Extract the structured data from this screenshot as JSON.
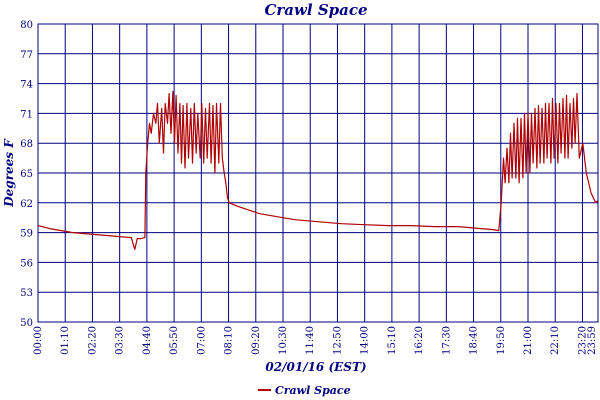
{
  "chart_data": {
    "type": "line",
    "title": "Crawl Space",
    "xlabel": "02/01/16 (EST)",
    "ylabel": "Degrees F",
    "ylim": [
      50,
      80
    ],
    "yticks": [
      "80",
      "77",
      "74",
      "71",
      "68",
      "65",
      "62",
      "59",
      "56",
      "53",
      "50"
    ],
    "xlim": [
      0,
      24
    ],
    "xtick_labels": [
      "00:00",
      "01:10",
      "02:20",
      "03:30",
      "04:40",
      "05:50",
      "07:00",
      "08:10",
      "09:20",
      "10:30",
      "11:40",
      "12:50",
      "14:00",
      "15:10",
      "16:20",
      "17:30",
      "18:40",
      "19:50",
      "21:00",
      "22:10",
      "23:20",
      "23:59"
    ],
    "grid": true,
    "legend_position": "bottom-center",
    "colors": {
      "series": "#b00000",
      "axis_text": "#000080",
      "grid": "#000080"
    },
    "series": [
      {
        "name": "Crawl Space",
        "x_hours": [
          0.0,
          0.5,
          1.0,
          1.5,
          2.0,
          2.5,
          3.0,
          3.5,
          4.0,
          4.15,
          4.25,
          4.4,
          4.58,
          4.62,
          4.7,
          4.78,
          4.85,
          4.95,
          5.05,
          5.12,
          5.2,
          5.3,
          5.38,
          5.45,
          5.55,
          5.62,
          5.7,
          5.78,
          5.85,
          5.92,
          6.0,
          6.08,
          6.15,
          6.22,
          6.3,
          6.38,
          6.45,
          6.55,
          6.62,
          6.7,
          6.78,
          6.85,
          6.95,
          7.02,
          7.1,
          7.18,
          7.25,
          7.35,
          7.42,
          7.5,
          7.58,
          7.65,
          7.75,
          7.82,
          7.9,
          7.98,
          8.05,
          8.12,
          8.2,
          8.3,
          8.5,
          9.0,
          9.5,
          10.0,
          11.0,
          12.0,
          13.0,
          14.0,
          15.0,
          16.0,
          17.0,
          18.0,
          19.0,
          19.5,
          19.75,
          19.85,
          19.95,
          20.02,
          20.1,
          20.18,
          20.25,
          20.32,
          20.4,
          20.48,
          20.55,
          20.62,
          20.7,
          20.78,
          20.85,
          20.92,
          21.0,
          21.08,
          21.15,
          21.22,
          21.3,
          21.38,
          21.45,
          21.52,
          21.6,
          21.68,
          21.75,
          21.82,
          21.9,
          21.98,
          22.05,
          22.12,
          22.2,
          22.28,
          22.35,
          22.42,
          22.5,
          22.58,
          22.65,
          22.72,
          22.8,
          22.88,
          22.95,
          23.02,
          23.1,
          23.2,
          23.35,
          23.5,
          23.6,
          23.7,
          23.8,
          23.9,
          23.98
        ],
        "y_degF": [
          59.7,
          59.4,
          59.2,
          59.0,
          58.9,
          58.8,
          58.7,
          58.6,
          58.5,
          57.3,
          58.4,
          58.4,
          58.5,
          65.0,
          68.0,
          70.0,
          69.0,
          71.0,
          70.0,
          72.0,
          68.0,
          71.5,
          67.0,
          72.0,
          70.0,
          73.0,
          69.0,
          73.2,
          68.0,
          72.8,
          67.0,
          72.0,
          66.0,
          71.8,
          65.5,
          72.0,
          66.5,
          71.5,
          66.0,
          72.0,
          67.0,
          71.0,
          66.5,
          72.0,
          66.0,
          71.5,
          66.5,
          72.0,
          66.0,
          71.8,
          65.0,
          72.0,
          66.0,
          72.0,
          66.5,
          65.0,
          64.0,
          62.5,
          62.0,
          61.9,
          61.7,
          61.3,
          60.9,
          60.7,
          60.3,
          60.1,
          59.9,
          59.8,
          59.7,
          59.7,
          59.6,
          59.6,
          59.4,
          59.3,
          59.2,
          62.0,
          66.5,
          64.0,
          67.5,
          64.0,
          69.0,
          64.5,
          70.0,
          64.5,
          70.5,
          64.0,
          70.5,
          64.5,
          71.0,
          65.0,
          71.0,
          65.0,
          71.0,
          66.0,
          71.5,
          65.5,
          71.8,
          66.0,
          71.5,
          66.0,
          72.0,
          66.5,
          72.0,
          66.0,
          72.5,
          66.5,
          72.0,
          66.0,
          72.0,
          67.0,
          72.5,
          66.5,
          72.8,
          66.5,
          72.0,
          67.5,
          72.5,
          68.0,
          73.0,
          66.5,
          68.0,
          65.0,
          64.0,
          63.0,
          62.5,
          62.0,
          62.2
        ]
      }
    ]
  }
}
